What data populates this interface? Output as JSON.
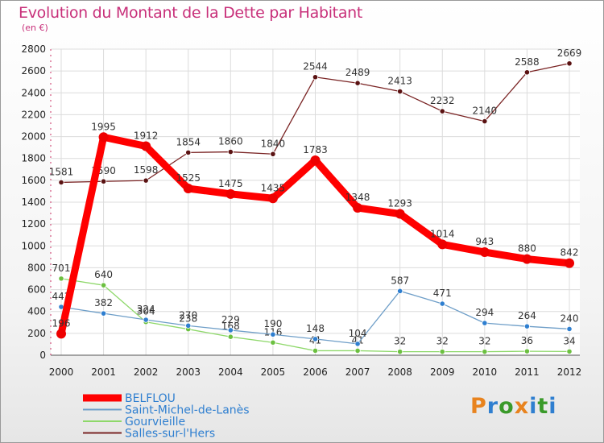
{
  "title": "Evolution du Montant de la Dette par Habitant",
  "subtitle": "(en €)",
  "logo": {
    "text": "Proxiti",
    "letter_colors": [
      "#e8831e",
      "#2f7fd0",
      "#3a9a2a",
      "#e8831e",
      "#2f7fd0",
      "#3a9a2a",
      "#2f7fd0"
    ]
  },
  "chart_data": {
    "type": "line",
    "title": "Evolution du Montant de la Dette par Habitant",
    "subtitle": "(en €)",
    "x": [
      "2000",
      "2001",
      "2002",
      "2003",
      "2004",
      "2005",
      "2006",
      "2007",
      "2008",
      "2009",
      "2010",
      "2011",
      "2012"
    ],
    "ylim": [
      0,
      2800
    ],
    "yticks": [
      "0",
      "200",
      "400",
      "600",
      "800",
      "1000",
      "1200",
      "1400",
      "1600",
      "1800",
      "2000",
      "2200",
      "2400",
      "2600",
      "2800"
    ],
    "grid": true,
    "legend": "bottom-left",
    "series": [
      {
        "name": "Salles-sur-l'Hers",
        "color": "#7a2424",
        "marker": "#5a1212",
        "values": [
          1581,
          1590,
          1598,
          1854,
          1860,
          1840,
          2544,
          2489,
          2413,
          2232,
          2140,
          2588,
          2669
        ],
        "labels": [
          "1581",
          "1590",
          "1598",
          "1854",
          "1860",
          "1840",
          "2544",
          "2489",
          "2413",
          "2232",
          "2140",
          "2588",
          "2669"
        ]
      },
      {
        "name": "Gourvieille",
        "color": "#8ed86a",
        "marker": "#6cc040",
        "values": [
          701,
          640,
          304,
          238,
          168,
          116,
          41,
          41,
          32,
          32,
          32,
          36,
          34
        ],
        "labels": [
          "701",
          "640",
          "304",
          "238",
          "168",
          "116",
          "41",
          "41",
          "32",
          "32",
          "32",
          "36",
          "34"
        ]
      },
      {
        "name": "Saint-Michel-de-Lanès",
        "color": "#6e9ec8",
        "marker": "#2f7fd0",
        "values": [
          442,
          382,
          324,
          270,
          229,
          190,
          148,
          104,
          587,
          471,
          294,
          264,
          240
        ],
        "labels": [
          "442",
          "382",
          "324",
          "270",
          "229",
          "190",
          "148",
          "104",
          "587",
          "471",
          "294",
          "264",
          "240"
        ]
      },
      {
        "name": "BELFLOU",
        "color": "#ff0000",
        "marker": "#ee0000",
        "values": [
          196,
          1995,
          1912,
          1525,
          1475,
          1435,
          1783,
          1348,
          1293,
          1014,
          943,
          880,
          842
        ],
        "labels": [
          "196",
          "1995",
          "1912",
          "1525",
          "1475",
          "1435",
          "1783",
          "1348",
          "1293",
          "1014",
          "943",
          "880",
          "842"
        ]
      }
    ],
    "legend_entries": [
      {
        "name": "BELFLOU",
        "color": "#ff0000"
      },
      {
        "name": "Saint-Michel-de-Lanès",
        "color": "#6e9ec8"
      },
      {
        "name": "Gourvieille",
        "color": "#8ed86a"
      },
      {
        "name": "Salles-sur-l'Hers",
        "color": "#7a2424"
      }
    ]
  }
}
